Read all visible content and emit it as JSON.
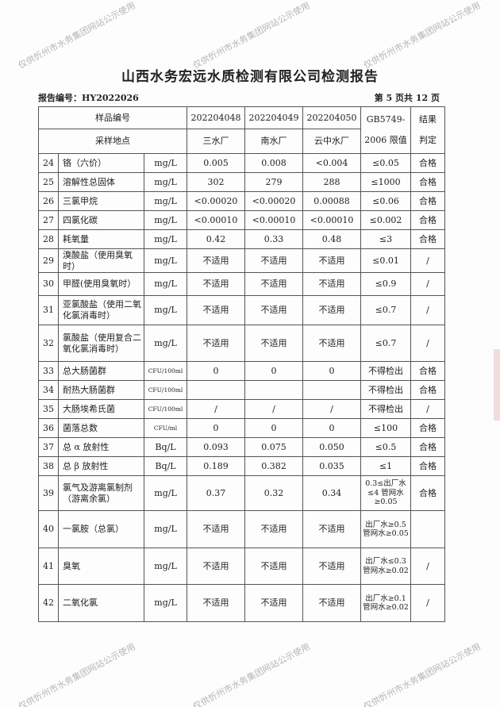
{
  "title": "山西水务宏远水质检测有限公司检测报告",
  "report_no": "报告编号：HY2022026",
  "page_info": "第 5 页共 12 页",
  "watermark": "仅供忻州市水务集团网站公示使用",
  "header": {
    "sample_no_label": "样品编号",
    "site_label": "采样地点",
    "samples": [
      "202204048",
      "202204049",
      "202204050"
    ],
    "sites": [
      "三水厂",
      "南水厂",
      "云中水厂"
    ],
    "limit_label_1": "GB5749-",
    "limit_label_2": "2006 限值",
    "result_label_1": "结果",
    "result_label_2": "判定"
  },
  "rows": [
    {
      "no": "24",
      "name": "铬（六价）",
      "unit": "mg/L",
      "v": [
        "0.005",
        "0.008",
        "<0.004"
      ],
      "limit": "≤0.05",
      "result": "合格"
    },
    {
      "no": "25",
      "name": "溶解性总固体",
      "unit": "mg/L",
      "v": [
        "302",
        "279",
        "288"
      ],
      "limit": "≤1000",
      "result": "合格"
    },
    {
      "no": "26",
      "name": "三氯甲烷",
      "unit": "mg/L",
      "v": [
        "<0.00020",
        "<0.00020",
        "0.00088"
      ],
      "limit": "≤0.06",
      "result": "合格"
    },
    {
      "no": "27",
      "name": "四氯化碳",
      "unit": "mg/L",
      "v": [
        "<0.00010",
        "<0.00010",
        "<0.00010"
      ],
      "limit": "≤0.002",
      "result": "合格"
    },
    {
      "no": "28",
      "name": "耗氧量",
      "unit": "mg/L",
      "v": [
        "0.42",
        "0.33",
        "0.48"
      ],
      "limit": "≤3",
      "result": "合格"
    },
    {
      "no": "29",
      "name": "溴酸盐（使用臭氧时）",
      "unit": "mg/L",
      "v": [
        "不适用",
        "不适用",
        "不适用"
      ],
      "limit": "≤0.01",
      "result": "/"
    },
    {
      "no": "30",
      "name": "甲醛(使用臭氧时）",
      "unit": "mg/L",
      "v": [
        "不适用",
        "不适用",
        "不适用"
      ],
      "limit": "≤0.9",
      "result": "/"
    },
    {
      "no": "31",
      "name": "亚氯酸盐（使用二氧化氯消毒时）",
      "unit": "mg/L",
      "v": [
        "不适用",
        "不适用",
        "不适用"
      ],
      "limit": "≤0.7",
      "result": "/"
    },
    {
      "no": "32",
      "name": "氯酸盐（使用复合二氧化氯消毒时）",
      "unit": "mg/L",
      "v": [
        "不适用",
        "不适用",
        "不适用"
      ],
      "limit": "≤0.7",
      "result": "/"
    },
    {
      "no": "33",
      "name": "总大肠菌群",
      "unit": "CFU/100ml",
      "v": [
        "0",
        "0",
        "0"
      ],
      "limit": "不得检出",
      "result": "合格"
    },
    {
      "no": "34",
      "name": "耐热大肠菌群",
      "unit": "CFU/100ml",
      "v": [
        "",
        "",
        ""
      ],
      "limit": "不得检出",
      "result": "合格"
    },
    {
      "no": "35",
      "name": "大肠埃希氏菌",
      "unit": "CFU/100ml",
      "v": [
        "/",
        "/",
        "/"
      ],
      "limit": "不得检出",
      "result": "/"
    },
    {
      "no": "36",
      "name": "菌落总数",
      "unit": "CFU/ml",
      "v": [
        "0",
        "0",
        "0"
      ],
      "limit": "≤100",
      "result": "合格"
    },
    {
      "no": "37",
      "name": "总 α 放射性",
      "unit": "Bq/L",
      "v": [
        "0.093",
        "0.075",
        "0.050"
      ],
      "limit": "≤0.5",
      "result": "合格"
    },
    {
      "no": "38",
      "name": "总 β 放射性",
      "unit": "Bq/L",
      "v": [
        "0.189",
        "0.382",
        "0.035"
      ],
      "limit": "≤1",
      "result": "合格"
    },
    {
      "no": "39",
      "name": "氯气及游离氯制剂（游离余氯）",
      "unit": "mg/L",
      "v": [
        "0.37",
        "0.32",
        "0.34"
      ],
      "limit": "0.3≤出厂水≤4 管网水≥0.05",
      "result": "合格"
    },
    {
      "no": "40",
      "name": "一氯胺（总氯）",
      "unit": "mg/L",
      "v": [
        "不适用",
        "不适用",
        "不适用"
      ],
      "limit": "出厂水≥0.5 管网水≥0.05",
      "result": ""
    },
    {
      "no": "41",
      "name": "臭氧",
      "unit": "mg/L",
      "v": [
        "不适用",
        "不适用",
        "不适用"
      ],
      "limit": "出厂水≤0.3 管网水≥0.02",
      "result": "/"
    },
    {
      "no": "42",
      "name": "二氧化氯",
      "unit": "mg/L",
      "v": [
        "不适用",
        "不适用",
        "不适用"
      ],
      "limit": "出厂水≥0.1 管网水≥0.02",
      "result": "/"
    }
  ]
}
